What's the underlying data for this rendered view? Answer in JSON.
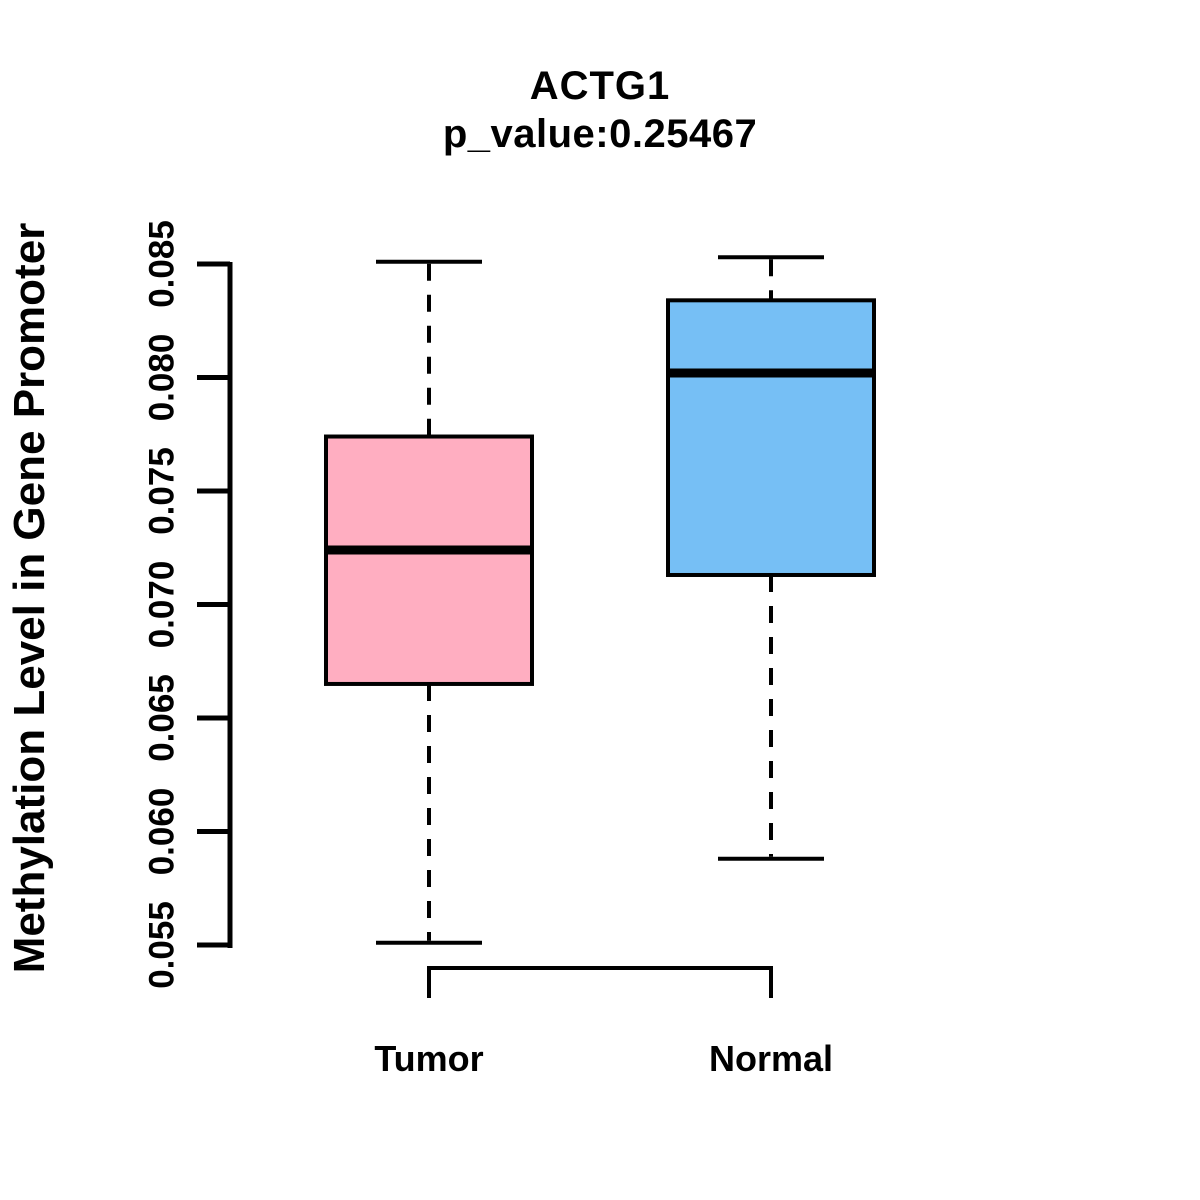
{
  "page": {
    "background": "#FFFFFF"
  },
  "header": {
    "title": "ACTG1",
    "subtitle": "p_value:0.25467"
  },
  "colors": {
    "tumor_fill": "#FFAEC1",
    "normal_fill": "#76BFF5",
    "line": "#000000",
    "text": "#000000",
    "background": "#FFFFFF"
  },
  "chart_data": {
    "type": "boxplot",
    "title": "ACTG1",
    "subtitle": "p_value:0.25467",
    "p_value": 0.25467,
    "xlabel": "",
    "ylabel": "Methylation Level in Gene Promoter",
    "categories": [
      "Tumor",
      "Normal"
    ],
    "ylim": [
      0.055,
      0.085
    ],
    "yticks": [
      0.055,
      0.06,
      0.065,
      0.07,
      0.075,
      0.08,
      0.085
    ],
    "ytick_labels": [
      "0.055",
      "0.060",
      "0.065",
      "0.070",
      "0.075",
      "0.080",
      "0.085"
    ],
    "grid": false,
    "legend": "none",
    "series": [
      {
        "name": "Tumor",
        "fill": "#FFAEC1",
        "whisker_low": 0.0551,
        "q1": 0.0665,
        "median": 0.0724,
        "q3": 0.0774,
        "whisker_high": 0.0851
      },
      {
        "name": "Normal",
        "fill": "#76BFF5",
        "whisker_low": 0.0588,
        "q1": 0.0713,
        "median": 0.0802,
        "q3": 0.0834,
        "whisker_high": 0.0853
      }
    ]
  }
}
